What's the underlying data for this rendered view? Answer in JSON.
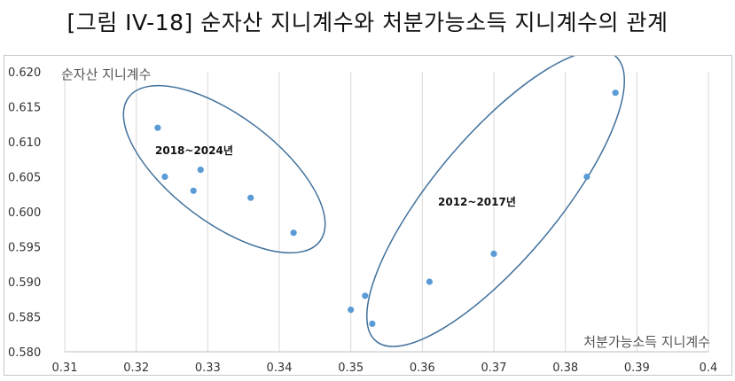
{
  "title": "[그림 IV-18] 순자산 지니계수와 처분가능소득 지니계수의 관계",
  "chart_data": {
    "type": "scatter",
    "xlabel": "처분가능소득 지니계수",
    "ylabel": "순자산 지니계수",
    "xlim": [
      0.31,
      0.4
    ],
    "ylim": [
      0.58,
      0.62
    ],
    "x_ticks": [
      "0.31",
      "0.32",
      "0.33",
      "0.34",
      "0.35",
      "0.36",
      "0.37",
      "0.38",
      "0.39",
      "0.4"
    ],
    "y_ticks": [
      "0.580",
      "0.585",
      "0.590",
      "0.595",
      "0.600",
      "0.605",
      "0.610",
      "0.615",
      "0.620"
    ],
    "grid": "vertical",
    "point_color": "#5b9bd5",
    "group_outline_color": "#41719c",
    "points": [
      {
        "x": 0.323,
        "y": 0.612
      },
      {
        "x": 0.324,
        "y": 0.605
      },
      {
        "x": 0.328,
        "y": 0.603
      },
      {
        "x": 0.329,
        "y": 0.606
      },
      {
        "x": 0.336,
        "y": 0.602
      },
      {
        "x": 0.342,
        "y": 0.597
      },
      {
        "x": 0.35,
        "y": 0.586
      },
      {
        "x": 0.352,
        "y": 0.588
      },
      {
        "x": 0.353,
        "y": 0.584
      },
      {
        "x": 0.361,
        "y": 0.59
      },
      {
        "x": 0.37,
        "y": 0.594
      },
      {
        "x": 0.383,
        "y": 0.605
      },
      {
        "x": 0.387,
        "y": 0.617
      }
    ],
    "groups": [
      {
        "label": "2018~2024년"
      },
      {
        "label": "2012~2017년"
      }
    ]
  }
}
